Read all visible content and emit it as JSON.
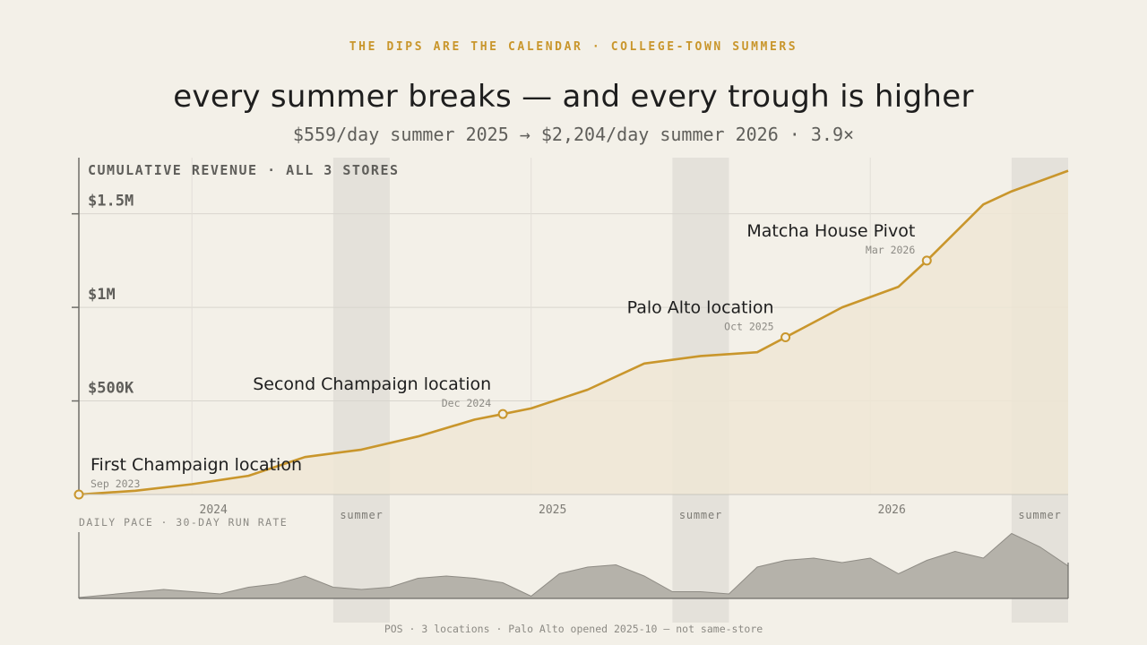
{
  "header": {
    "kicker": "THE DIPS ARE THE CALENDAR · COLLEGE-TOWN SUMMERS",
    "title": "every summer breaks — and every trough is higher",
    "subtitle": "$559/day summer 2025 → $2,204/day summer 2026 · 3.9×"
  },
  "footer": {
    "source": "POS · 3 locations · Palo Alto opened 2025-10 — not same-store"
  },
  "colors": {
    "accent": "#c9962c",
    "area_fill": "#efe6d5",
    "pace_fill": "#b5b2aa",
    "summer_band": "#e4e1da",
    "grid": "#d8d5ce",
    "axis": "#6f6e69"
  },
  "chart_data": [
    {
      "type": "area",
      "title": "CUMULATIVE REVENUE · ALL 3 STORES",
      "x_axis": {
        "type": "date",
        "range": [
          "2023-09",
          "2026-08"
        ],
        "tick_labels": [
          "2024",
          "2025",
          "2026"
        ],
        "ticks": [
          "2024-01",
          "2025-01",
          "2026-01"
        ]
      },
      "y_axis": {
        "range": [
          0,
          1800000
        ],
        "ticks": [
          500000,
          1000000,
          1500000
        ],
        "tick_labels": [
          "$500K",
          "$1M",
          "$1.5M"
        ]
      },
      "grid": true,
      "shaded_periods": [
        {
          "label": "summer",
          "start": "2024-06",
          "end": "2024-08"
        },
        {
          "label": "summer",
          "start": "2025-06",
          "end": "2025-08"
        },
        {
          "label": "summer",
          "start": "2026-06",
          "end": "2026-08"
        }
      ],
      "series": [
        {
          "x": [
            "2023-09",
            "2023-11",
            "2024-01",
            "2024-03",
            "2024-05",
            "2024-07",
            "2024-09",
            "2024-11",
            "2024-12",
            "2025-01",
            "2025-03",
            "2025-05",
            "2025-07",
            "2025-09",
            "2025-10",
            "2025-12",
            "2026-02",
            "2026-03",
            "2026-05",
            "2026-06",
            "2026-08"
          ],
          "values": [
            0,
            20000,
            55000,
            100000,
            200000,
            240000,
            310000,
            400000,
            430000,
            460000,
            560000,
            700000,
            740000,
            760000,
            840000,
            1000000,
            1110000,
            1250000,
            1550000,
            1620000,
            1730000
          ]
        }
      ],
      "annotations": [
        {
          "label": "First Champaign location",
          "date_label": "Sep 2023",
          "x": "2023-09",
          "y": 0
        },
        {
          "label": "Second Champaign location",
          "date_label": "Dec 2024",
          "x": "2024-12",
          "y": 430000
        },
        {
          "label": "Palo Alto location",
          "date_label": "Oct 2025",
          "x": "2025-10",
          "y": 840000
        },
        {
          "label": "Matcha House Pivot",
          "date_label": "Mar 2026",
          "x": "2026-03",
          "y": 1250000
        }
      ]
    },
    {
      "type": "area",
      "title": "DAILY PACE · 30-DAY RUN RATE",
      "x_axis": {
        "type": "date",
        "range": [
          "2023-09",
          "2026-08"
        ]
      },
      "y_axis": {
        "range": [
          0,
          2800
        ]
      },
      "series": [
        {
          "x": [
            "2023-09",
            "2023-12",
            "2024-02",
            "2024-03",
            "2024-04",
            "2024-05",
            "2024-06",
            "2024-07",
            "2024-08",
            "2024-09",
            "2024-10",
            "2024-11",
            "2024-12",
            "2025-01",
            "2025-02",
            "2025-03",
            "2025-04",
            "2025-05",
            "2025-06",
            "2025-07",
            "2025-08",
            "2025-09",
            "2025-10",
            "2025-11",
            "2025-12",
            "2026-01",
            "2026-02",
            "2026-03",
            "2026-04",
            "2026-05",
            "2026-06",
            "2026-07",
            "2026-08"
          ],
          "values": [
            40,
            400,
            200,
            500,
            650,
            1000,
            500,
            400,
            500,
            900,
            1000,
            900,
            700,
            100,
            1100,
            1400,
            1500,
            1000,
            300,
            300,
            200,
            1400,
            1700,
            1800,
            1600,
            1800,
            1100,
            1700,
            2100,
            1800,
            2900,
            2300,
            1450
          ]
        }
      ]
    }
  ],
  "chart_labels": {
    "summer": "summer"
  }
}
